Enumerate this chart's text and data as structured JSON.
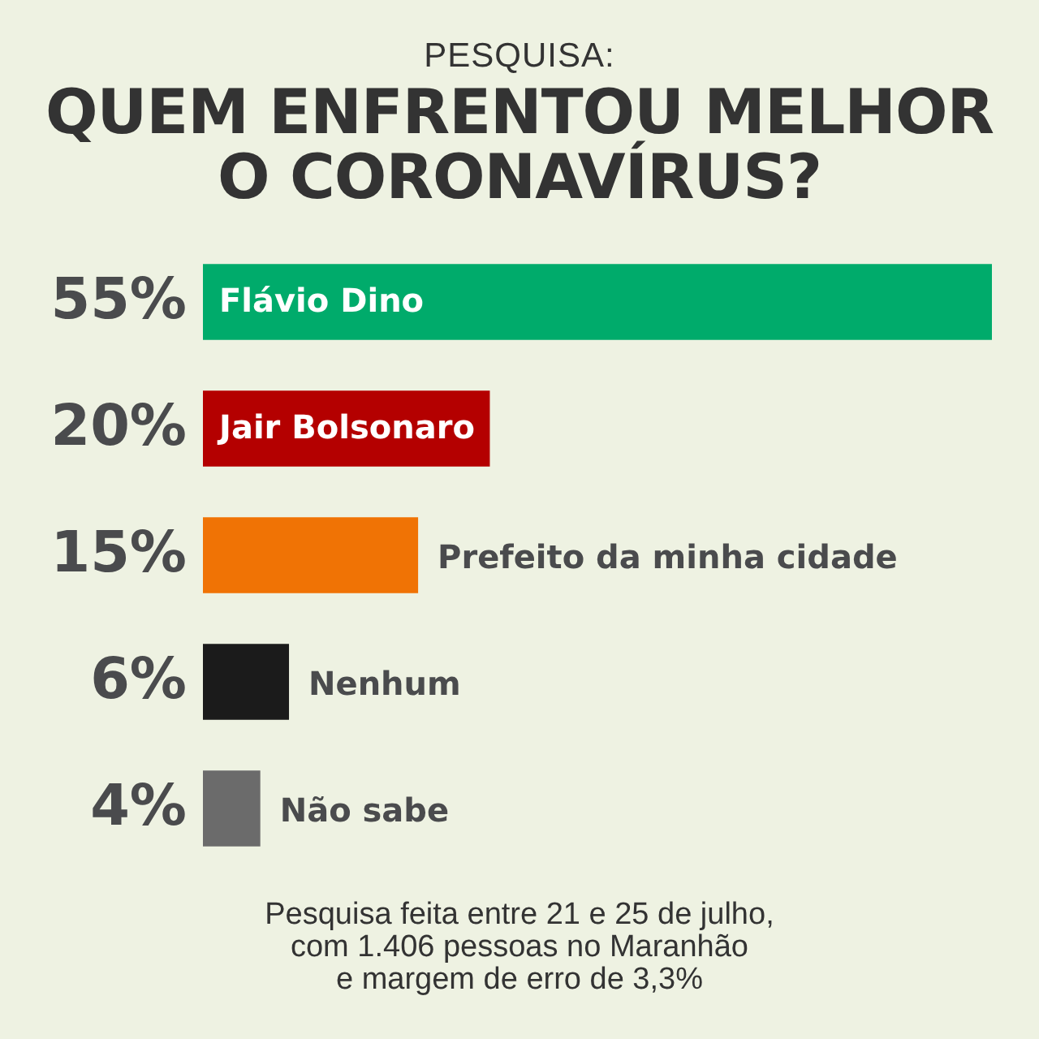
{
  "chart_data": {
    "type": "bar",
    "orientation": "horizontal",
    "subtitle": "PESQUISA:",
    "title": "QUEM ENFRENTOU MELHOR O CORONAVÍRUS?",
    "categories": [
      "Flávio Dino",
      "Jair Bolsonaro",
      "Prefeito da minha cidade",
      "Nenhum",
      "Não sabe"
    ],
    "values": [
      55,
      20,
      15,
      6,
      4
    ],
    "colors": [
      "#00ab6b",
      "#b40000",
      "#f07305",
      "#1b1b1b",
      "#6b6b6b"
    ],
    "value_labels": [
      "55%",
      "20%",
      "15%",
      "6%",
      "4%"
    ],
    "annotations": [
      "Pesquisa feita entre 21 e 25 de julho,\ncom 1.406 pessoas no Maranhão\ne margem de erro de 3,3%"
    ]
  }
}
